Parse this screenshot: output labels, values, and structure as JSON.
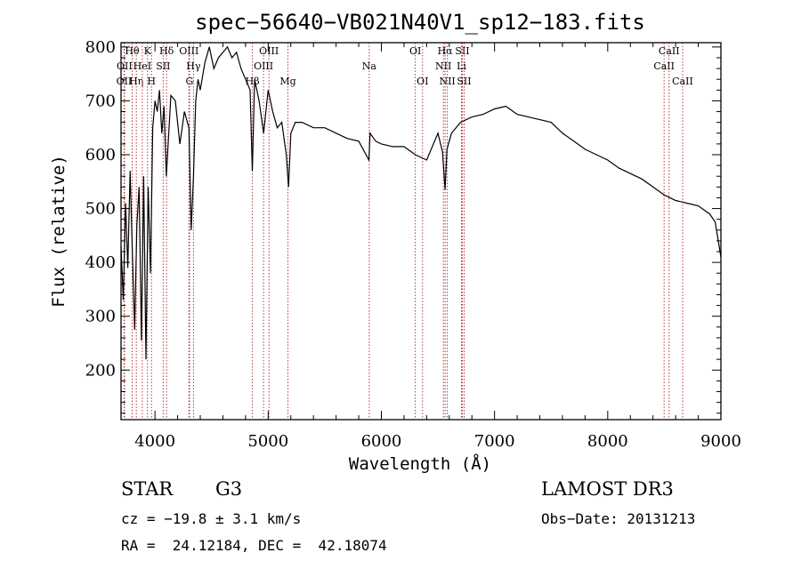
{
  "chart_data": {
    "type": "line",
    "title": "spec−56640−VB021N40V1_sp12−183.fits",
    "xlabel": "Wavelength (Å)",
    "ylabel": "Flux (relative)",
    "xlim": [
      3700,
      9000
    ],
    "ylim": [
      108,
      808
    ],
    "xticks": [
      4000,
      5000,
      6000,
      7000,
      8000,
      9000
    ],
    "yticks": [
      200,
      300,
      400,
      500,
      600,
      700,
      800
    ],
    "series": [
      {
        "name": "flux",
        "x": [
          3700,
          3720,
          3740,
          3760,
          3780,
          3800,
          3820,
          3840,
          3860,
          3880,
          3900,
          3920,
          3940,
          3960,
          3980,
          4000,
          4020,
          4040,
          4060,
          4080,
          4100,
          4140,
          4180,
          4220,
          4260,
          4300,
          4320,
          4340,
          4360,
          4380,
          4400,
          4440,
          4480,
          4520,
          4560,
          4600,
          4640,
          4680,
          4720,
          4760,
          4800,
          4840,
          4860,
          4880,
          4920,
          4960,
          5000,
          5040,
          5080,
          5120,
          5160,
          5180,
          5200,
          5240,
          5300,
          5400,
          5500,
          5600,
          5700,
          5800,
          5890,
          5900,
          5950,
          6000,
          6100,
          6200,
          6300,
          6400,
          6500,
          6540,
          6563,
          6580,
          6620,
          6700,
          6800,
          6900,
          7000,
          7100,
          7200,
          7300,
          7400,
          7500,
          7600,
          7700,
          7800,
          7900,
          8000,
          8100,
          8200,
          8300,
          8400,
          8500,
          8550,
          8600,
          8700,
          8800,
          8900,
          8950,
          9000
        ],
        "values": [
          430,
          330,
          510,
          390,
          570,
          420,
          275,
          470,
          540,
          255,
          560,
          220,
          540,
          380,
          650,
          700,
          680,
          720,
          640,
          690,
          560,
          710,
          700,
          620,
          680,
          650,
          460,
          560,
          700,
          740,
          720,
          770,
          800,
          760,
          780,
          790,
          800,
          780,
          790,
          760,
          740,
          720,
          570,
          740,
          700,
          640,
          720,
          680,
          650,
          660,
          600,
          540,
          640,
          660,
          660,
          650,
          650,
          640,
          630,
          625,
          590,
          640,
          625,
          620,
          615,
          615,
          600,
          590,
          640,
          605,
          535,
          610,
          640,
          660,
          670,
          675,
          685,
          690,
          675,
          670,
          665,
          660,
          640,
          625,
          610,
          600,
          590,
          575,
          565,
          555,
          540,
          525,
          520,
          515,
          510,
          505,
          490,
          475,
          410
        ]
      }
    ],
    "lines": [
      {
        "name": "OII",
        "wavelength": 3727,
        "row": 2
      },
      {
        "name": "OII",
        "wavelength": 3730,
        "row": 1
      },
      {
        "name": "Hθ",
        "wavelength": 3798,
        "row": 0
      },
      {
        "name": "Hη",
        "wavelength": 3835,
        "row": 2
      },
      {
        "name": "HeI",
        "wavelength": 3888,
        "row": 1
      },
      {
        "name": "K",
        "wavelength": 3934,
        "row": 0
      },
      {
        "name": "H",
        "wavelength": 3969,
        "row": 2
      },
      {
        "name": "SII",
        "wavelength": 4072,
        "row": 1
      },
      {
        "name": "Hδ",
        "wavelength": 4102,
        "row": 0
      },
      {
        "name": "OIII",
        "wavelength": 4300,
        "row": 0
      },
      {
        "name": "Hγ",
        "wavelength": 4340,
        "row": 1
      },
      {
        "name": "G",
        "wavelength": 4305,
        "row": 2
      },
      {
        "name": "Hβ",
        "wavelength": 4861,
        "row": 2
      },
      {
        "name": "OIII",
        "wavelength": 4959,
        "row": 1
      },
      {
        "name": "OIII",
        "wavelength": 5007,
        "row": 0
      },
      {
        "name": "Mg",
        "wavelength": 5175,
        "row": 2
      },
      {
        "name": "Na",
        "wavelength": 5893,
        "row": 1
      },
      {
        "name": "OI",
        "wavelength": 6300,
        "row": 0
      },
      {
        "name": "OI",
        "wavelength": 6364,
        "row": 2
      },
      {
        "name": "NII",
        "wavelength": 6548,
        "row": 1
      },
      {
        "name": "NII",
        "wavelength": 6583,
        "row": 2
      },
      {
        "name": "Hα",
        "wavelength": 6563,
        "row": 0
      },
      {
        "name": "SII",
        "wavelength": 6716,
        "row": 0
      },
      {
        "name": "Li",
        "wavelength": 6708,
        "row": 1
      },
      {
        "name": "SII",
        "wavelength": 6731,
        "row": 2
      },
      {
        "name": "CaII",
        "wavelength": 8498,
        "row": 1
      },
      {
        "name": "CaII",
        "wavelength": 8542,
        "row": 0
      },
      {
        "name": "CaII",
        "wavelength": 8662,
        "row": 2
      }
    ]
  },
  "info": {
    "class": "STAR",
    "subclass": "G3",
    "survey": "LAMOST DR3",
    "cz": "cz = −19.8 ± 3.1 km/s",
    "obs_date": "Obs−Date: 20131213",
    "coords": "RA =  24.12184, DEC =  42.18074"
  }
}
